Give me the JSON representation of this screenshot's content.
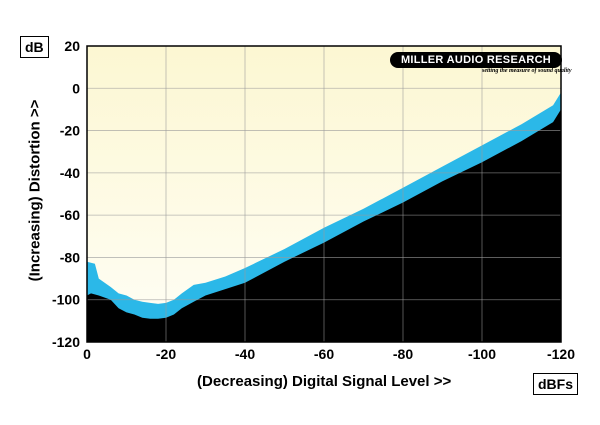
{
  "chart_data": {
    "type": "area",
    "xlabel": "(Decreasing) Digital Signal Level >>",
    "ylabel": "(Increasing) Distortion >>",
    "x_unit": "dBFs",
    "y_unit": "dB",
    "xlim": [
      0,
      -120
    ],
    "ylim": [
      -120,
      20
    ],
    "x_ticks": [
      0,
      -20,
      -40,
      -60,
      -80,
      -100,
      -120
    ],
    "x_tick_labels": [
      "0",
      "-20",
      "-40",
      "-60",
      "-80",
      "-100",
      "-120"
    ],
    "y_ticks": [
      20,
      0,
      -20,
      -40,
      -60,
      -80,
      -100,
      -120
    ],
    "y_tick_labels": [
      "20",
      "0",
      "-20",
      "-40",
      "-60",
      "-80",
      "-100",
      "-120"
    ],
    "grid": true,
    "series": [
      {
        "role": "upper_band",
        "color": "#2bb8e8",
        "x": [
          0,
          -2,
          -3,
          -6,
          -8,
          -10,
          -12,
          -14,
          -16,
          -18,
          -20,
          -22,
          -24,
          -27,
          -30,
          -35,
          -40,
          -50,
          -60,
          -70,
          -80,
          -90,
          -100,
          -110,
          -118,
          -120
        ],
        "y": [
          -82,
          -83,
          -90,
          -94,
          -97,
          -98,
          -100,
          -101,
          -101.5,
          -102,
          -101.5,
          -100,
          -97,
          -93,
          -92,
          -89,
          -85,
          -76,
          -66,
          -57,
          -47,
          -37,
          -27,
          -17,
          -8,
          -2
        ]
      },
      {
        "role": "lower_band",
        "color": "#000000",
        "x": [
          0,
          -1,
          -3,
          -6,
          -8,
          -10,
          -12,
          -14,
          -16,
          -18,
          -20,
          -22,
          -24,
          -27,
          -30,
          -35,
          -40,
          -50,
          -60,
          -70,
          -80,
          -90,
          -100,
          -110,
          -118,
          -120
        ],
        "y": [
          -98,
          -97,
          -98,
          -100,
          -104,
          -106,
          -107,
          -108.5,
          -109,
          -109,
          -108.5,
          -107,
          -104,
          -101,
          -98,
          -95,
          -92,
          -82,
          -73,
          -63,
          -54,
          -44,
          -35,
          -25,
          -16,
          -10
        ]
      }
    ],
    "colors": {
      "plot_background": "#fdfbe6",
      "grid": "#9a9a9a",
      "band": "#2bb8e8",
      "floor": "#000000"
    }
  },
  "logo": {
    "name": "MILLER AUDIO RESEARCH",
    "tagline": "setting the measure of sound quality"
  }
}
